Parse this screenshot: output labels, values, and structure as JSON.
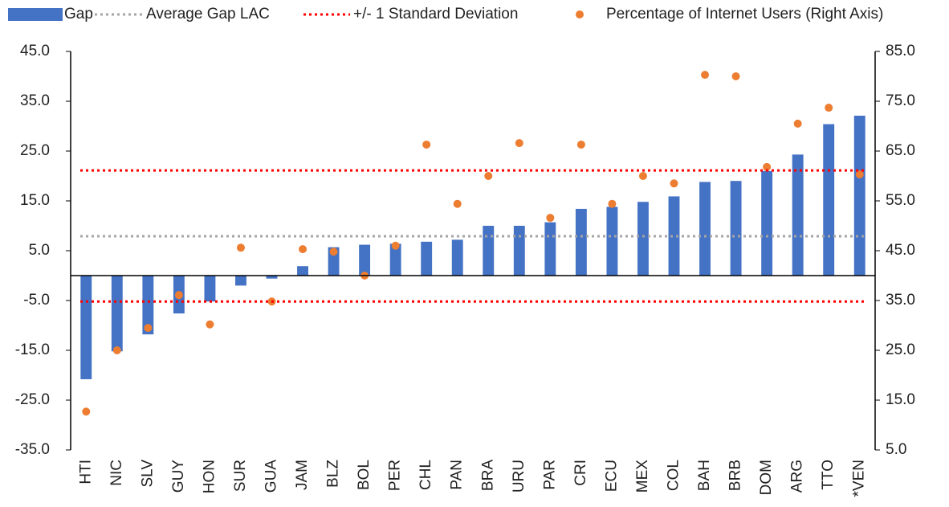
{
  "chart_data": {
    "type": "bar",
    "categories": [
      "HTI",
      "NIC",
      "SLV",
      "GUY",
      "HON",
      "SUR",
      "GUA",
      "JAM",
      "BLZ",
      "BOL",
      "PER",
      "CHL",
      "PAN",
      "BRA",
      "URU",
      "PAR",
      "CRI",
      "ECU",
      "MEX",
      "COL",
      "BAH",
      "BRB",
      "DOM",
      "ARG",
      "TTO",
      "*VEN"
    ],
    "series": [
      {
        "name": "Gap",
        "color": "#4472c4",
        "type": "bar",
        "values": [
          -20.8,
          -15.2,
          -11.8,
          -7.6,
          -5.2,
          -2.0,
          -0.6,
          1.9,
          5.7,
          6.2,
          6.4,
          6.8,
          7.2,
          10.0,
          10.0,
          10.7,
          13.4,
          13.8,
          14.8,
          15.9,
          18.8,
          19.0,
          21.0,
          24.3,
          30.4,
          32.1
        ]
      },
      {
        "name": "Percentage of Internet Users (Right Axis)",
        "color": "#ed7d31",
        "type": "scatter",
        "axis": "y2",
        "values": [
          12.7,
          25.0,
          29.5,
          36.1,
          30.2,
          45.6,
          34.8,
          45.3,
          44.8,
          40.0,
          46.0,
          66.3,
          54.4,
          60.0,
          66.6,
          51.6,
          66.3,
          54.4,
          60.0,
          58.5,
          80.3,
          80.0,
          61.8,
          70.5,
          73.7,
          60.3
        ]
      }
    ],
    "reference_lines": [
      {
        "name": "Average Gap LAC",
        "color": "#a5a5a5",
        "values": [
          7.9
        ]
      },
      {
        "name": "+/- 1 Standard Deviation",
        "color": "#ff0000",
        "values": [
          21.1,
          -5.2
        ]
      }
    ],
    "ylim": [
      -35,
      45
    ],
    "yticks": [
      {
        "value": -35,
        "label": "-35.0"
      },
      {
        "value": -25,
        "label": "-25.0"
      },
      {
        "value": -15,
        "label": "-15.0"
      },
      {
        "value": -5,
        "label": "-5.0"
      },
      {
        "value": 5,
        "label": "5.0"
      },
      {
        "value": 15,
        "label": "15.0"
      },
      {
        "value": 25,
        "label": "25.0"
      },
      {
        "value": 35,
        "label": "35.0"
      },
      {
        "value": 45,
        "label": "45.0"
      }
    ],
    "y2lim": [
      5,
      85
    ],
    "y2ticks": [
      {
        "value": 5,
        "label": "5.0"
      },
      {
        "value": 15,
        "label": "15.0"
      },
      {
        "value": 25,
        "label": "25.0"
      },
      {
        "value": 35,
        "label": "35.0"
      },
      {
        "value": 45,
        "label": "45.0"
      },
      {
        "value": 55,
        "label": "55.0"
      },
      {
        "value": 65,
        "label": "65.0"
      },
      {
        "value": 75,
        "label": "75.0"
      },
      {
        "value": 85,
        "label": "85.0"
      }
    ]
  }
}
